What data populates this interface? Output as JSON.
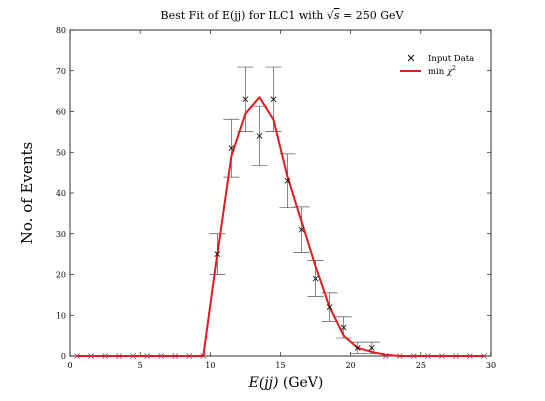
{
  "chart_data": {
    "type": "line",
    "title_parts": {
      "prefix": "Best Fit of E(jj) for ILC1 with ",
      "sqrt_symbol": "√",
      "sqrt_arg": "s",
      "suffix": " = 250 GeV"
    },
    "xlabel": {
      "var": "E(jj)",
      "unit": "(GeV)"
    },
    "ylabel": "No. of Events",
    "xlim": [
      0,
      30
    ],
    "ylim": [
      0,
      80
    ],
    "x_ticks": [
      0,
      5,
      10,
      15,
      20,
      25,
      30
    ],
    "y_ticks": [
      0,
      10,
      20,
      30,
      40,
      50,
      60,
      70,
      80
    ],
    "grid": false,
    "legend_position": "top-right",
    "legend": {
      "data_label": "Input Data",
      "fit_label_prefix": "min ",
      "fit_label_symbol": "χ",
      "fit_label_sup": "2"
    },
    "colors": {
      "fit": "#e41a1c",
      "data": "#000000",
      "errorbar": "#555555"
    },
    "series": [
      {
        "name": "Input Data",
        "style": "x-marker-with-errorbars",
        "x": [
          0.5,
          1.5,
          2.5,
          3.5,
          4.5,
          5.5,
          6.5,
          7.5,
          8.5,
          9.5,
          10.5,
          11.5,
          12.5,
          13.5,
          14.5,
          15.5,
          16.5,
          17.5,
          18.5,
          19.5,
          20.5,
          21.5,
          22.5,
          23.5,
          24.5,
          25.5,
          26.5,
          27.5,
          28.5,
          29.5
        ],
        "y": [
          0,
          0,
          0,
          0,
          0,
          0,
          0,
          0,
          0,
          0,
          25,
          51,
          63,
          54,
          63,
          43,
          31,
          19,
          12,
          7,
          2,
          2,
          0,
          0,
          0,
          0,
          0,
          0,
          0,
          0
        ],
        "err": [
          0,
          0,
          0,
          0,
          0,
          0,
          0,
          0,
          0,
          0,
          5,
          7.1,
          7.9,
          7.3,
          7.9,
          6.6,
          5.6,
          4.4,
          3.5,
          2.6,
          1.4,
          1.4,
          0,
          0,
          0,
          0,
          0,
          0,
          0,
          0
        ]
      },
      {
        "name": "min χ²",
        "style": "line",
        "x": [
          0.5,
          1.5,
          2.5,
          3.5,
          4.5,
          5.5,
          6.5,
          7.5,
          8.5,
          9.5,
          10.5,
          11.5,
          12.5,
          13.5,
          14.5,
          15.5,
          16.5,
          17.5,
          18.5,
          19.5,
          20.5,
          21.5,
          22.5,
          23.5,
          24.5,
          25.5,
          26.5,
          27.5,
          28.5,
          29.5
        ],
        "y": [
          0,
          0,
          0,
          0,
          0,
          0,
          0,
          0,
          0,
          0,
          25,
          49,
          59.5,
          63.5,
          58,
          44,
          33,
          22,
          12,
          5,
          2,
          1,
          0.3,
          0,
          0,
          0,
          0,
          0,
          0,
          0
        ]
      }
    ]
  }
}
